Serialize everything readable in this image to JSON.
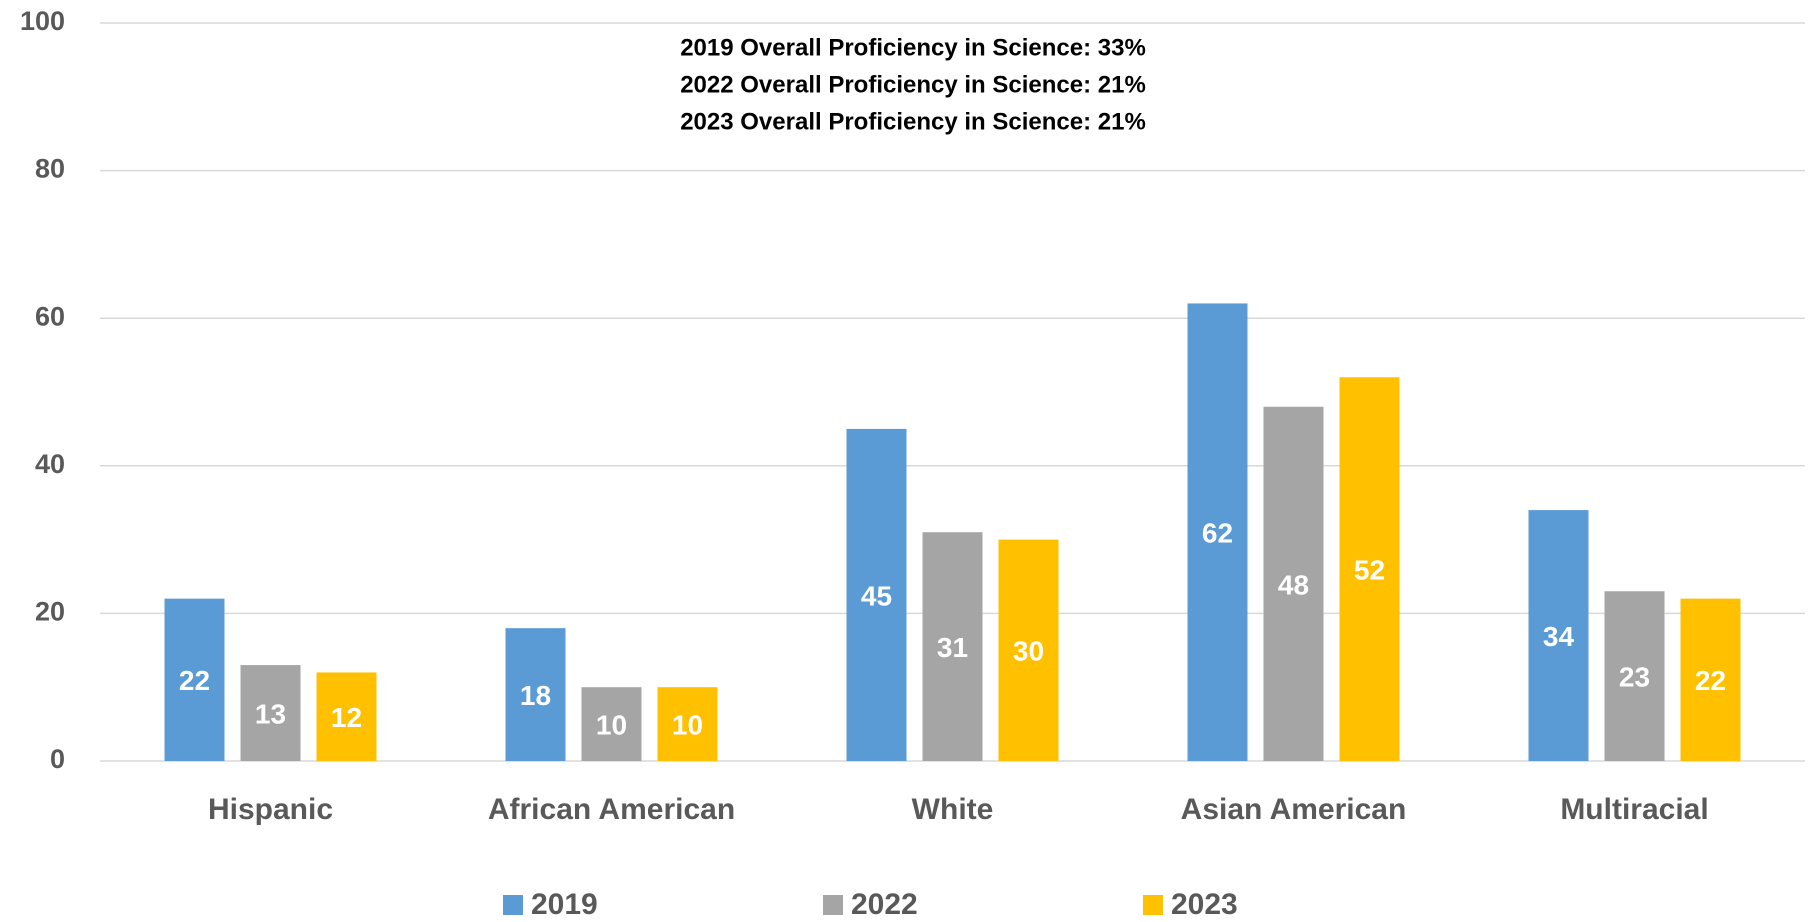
{
  "chart_data": {
    "type": "bar",
    "annotations": [
      "2019 Overall Proficiency in Science: 33%",
      "2022 Overall Proficiency in Science: 21%",
      "2023 Overall Proficiency in Science: 21%"
    ],
    "categories": [
      "Hispanic",
      "African American",
      "White",
      "Asian American",
      "Multiracial"
    ],
    "series": [
      {
        "name": "2019",
        "color": "#5b9bd5",
        "values": [
          22,
          18,
          45,
          62,
          34
        ]
      },
      {
        "name": "2022",
        "color": "#a5a5a5",
        "values": [
          13,
          10,
          31,
          48,
          23
        ]
      },
      {
        "name": "2023",
        "color": "#ffc000",
        "values": [
          12,
          10,
          30,
          52,
          22
        ]
      }
    ],
    "ylim": [
      0,
      100
    ],
    "yticks": [
      0,
      20,
      40,
      60,
      80,
      100
    ],
    "grid": true,
    "legend": "bottom"
  }
}
